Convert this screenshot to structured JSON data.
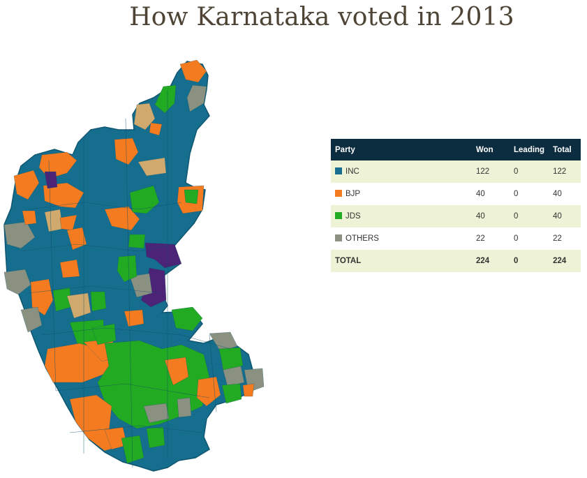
{
  "title": "How Karnataka voted in 2013",
  "colors": {
    "INC": "#166e8e",
    "BJP": "#f47b20",
    "JDS": "#22aa22",
    "OTHERS": "#8a9180",
    "regional": "#cfa96d",
    "independent": "#4b2478"
  },
  "table": {
    "headers": [
      "Party",
      "Won",
      "Leading",
      "Total"
    ],
    "rows": [
      {
        "party": "INC",
        "won": "122",
        "leading": "0",
        "total": "122",
        "color": "#166e8e"
      },
      {
        "party": "BJP",
        "won": "40",
        "leading": "0",
        "total": "40",
        "color": "#f47b20"
      },
      {
        "party": "JDS",
        "won": "40",
        "leading": "0",
        "total": "40",
        "color": "#22aa22"
      },
      {
        "party": "OTHERS",
        "won": "22",
        "leading": "0",
        "total": "22",
        "color": "#8a9180"
      }
    ],
    "total": {
      "label": "TOTAL",
      "won": "224",
      "leading": "0",
      "total": "224"
    }
  }
}
